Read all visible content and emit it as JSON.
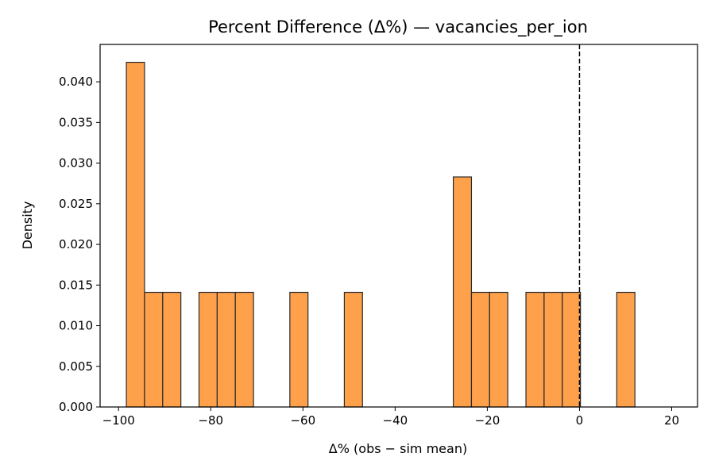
{
  "chart_data": {
    "type": "histogram",
    "title": "Percent Difference (Δ%) — vacancies_per_ion",
    "xlabel": "Δ% (obs − sim mean)",
    "ylabel": "Density",
    "xlim": [
      -104,
      25.6
    ],
    "ylim": [
      0,
      0.0446
    ],
    "xticks": [
      -100,
      -80,
      -60,
      -40,
      -20,
      0,
      20
    ],
    "xtick_labels": [
      "−100",
      "−80",
      "−60",
      "−40",
      "−20",
      "0",
      "20"
    ],
    "yticks": [
      0,
      0.005,
      0.01,
      0.015,
      0.02,
      0.025,
      0.03,
      0.035,
      0.04
    ],
    "ytick_labels": [
      "0.000",
      "0.005",
      "0.010",
      "0.015",
      "0.020",
      "0.025",
      "0.030",
      "0.035",
      "0.040"
    ],
    "bin_start": -98.3,
    "bin_width": 3.94,
    "density": [
      0.0424,
      0.0141,
      0.0141,
      0,
      0.0141,
      0.0141,
      0.0141,
      0,
      0,
      0.0141,
      0,
      0,
      0.0141,
      0,
      0,
      0,
      0,
      0,
      0.0283,
      0.0141,
      0.0141,
      0,
      0.0141,
      0.0141,
      0.0141,
      0,
      0,
      0.0141
    ],
    "bar_color": "#ffa04a",
    "bar_edge_color": "#2b2b2b",
    "vline_x": 0,
    "vline_style": "dashed",
    "grid": false,
    "legend": "none"
  }
}
